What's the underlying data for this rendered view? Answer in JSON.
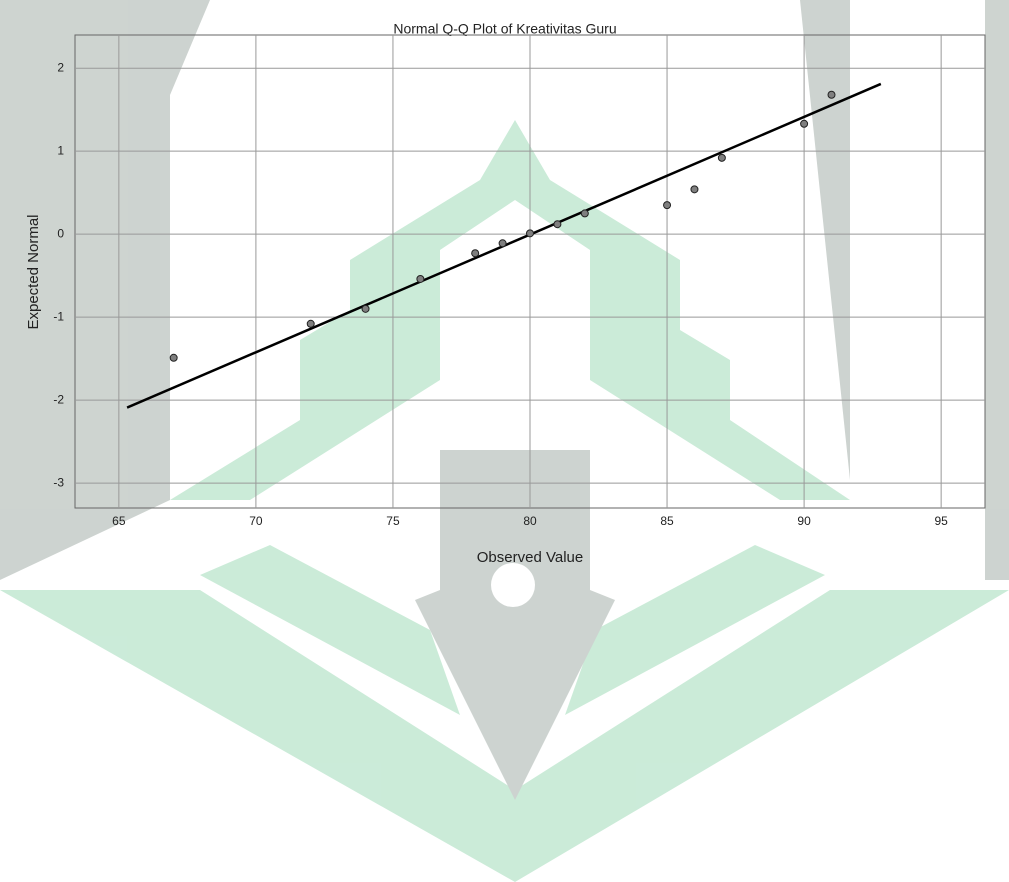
{
  "chart_data": {
    "type": "scatter",
    "title": "Normal Q-Q Plot of Kreativitas Guru",
    "xlabel": "Observed Value",
    "ylabel": "Expected Normal",
    "series": [
      {
        "name": "Kreativitas Guru",
        "color": "#7f7f7f",
        "x": [
          67,
          72,
          74,
          76,
          78,
          79,
          80,
          81,
          82,
          85,
          86,
          87,
          90,
          91
        ],
        "values": [
          -1.49,
          -1.08,
          -0.9,
          -0.54,
          -0.23,
          -0.11,
          0.01,
          0.12,
          0.25,
          0.35,
          0.54,
          0.92,
          1.33,
          1.68
        ]
      }
    ],
    "reference_line": {
      "color": "#000000",
      "x": [
        65.3,
        92.8
      ],
      "values": [
        -2.09,
        1.81
      ]
    },
    "xlim": [
      63.4,
      96.6
    ],
    "ylim": [
      -3.3,
      2.4
    ],
    "xticks": [
      65,
      70,
      75,
      80,
      85,
      90,
      95
    ],
    "yticks": [
      -3,
      -2,
      -1,
      0,
      1,
      2
    ],
    "grid": true
  }
}
